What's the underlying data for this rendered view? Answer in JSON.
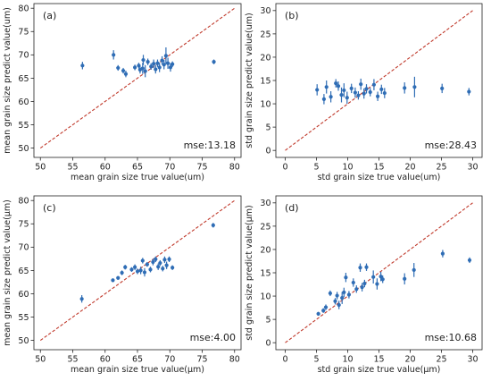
{
  "chart_data": [
    {
      "type": "scatter",
      "panel": "(a)",
      "annotation": "mse:13.18",
      "xlabel": "mean grain size true value(um)",
      "ylabel": "mean grain size predict value(um)",
      "xlim": [
        49,
        81
      ],
      "ylim": [
        48,
        81
      ],
      "xticks": [
        50,
        55,
        60,
        65,
        70,
        75,
        80
      ],
      "yticks": [
        50,
        55,
        60,
        65,
        70,
        75,
        80
      ],
      "diagonal": [
        [
          50,
          50
        ],
        [
          80,
          80
        ]
      ],
      "points": [
        [
          56.5,
          67.7,
          0.8
        ],
        [
          61.3,
          70.0,
          1.0
        ],
        [
          62.0,
          67.2,
          0.6
        ],
        [
          62.8,
          66.6,
          0.6
        ],
        [
          63.2,
          65.9,
          0.7
        ],
        [
          64.6,
          67.3,
          0.6
        ],
        [
          65.2,
          67.7,
          0.6
        ],
        [
          65.4,
          66.8,
          0.8
        ],
        [
          65.8,
          67.1,
          1.2
        ],
        [
          65.9,
          68.9,
          1.1
        ],
        [
          66.2,
          66.5,
          1.3
        ],
        [
          66.6,
          68.5,
          0.7
        ],
        [
          67.1,
          67.5,
          0.7
        ],
        [
          67.5,
          68.1,
          0.9
        ],
        [
          67.8,
          66.9,
          0.9
        ],
        [
          68.1,
          68.2,
          0.8
        ],
        [
          68.4,
          67.3,
          1.0
        ],
        [
          68.8,
          68.8,
          0.9
        ],
        [
          69.1,
          67.9,
          1.0
        ],
        [
          69.4,
          69.8,
          1.8
        ],
        [
          69.7,
          68.2,
          1.2
        ],
        [
          70.1,
          67.3,
          0.9
        ],
        [
          70.4,
          68.0,
          0.6
        ],
        [
          76.8,
          68.5,
          0.5
        ]
      ]
    },
    {
      "type": "scatter",
      "panel": "(b)",
      "annotation": "mse:28.43",
      "xlabel": "std grain size true value(um)",
      "ylabel": "std grain size predict value(um)",
      "xlim": [
        -1.5,
        31.5
      ],
      "ylim": [
        -1.5,
        31.5
      ],
      "xticks": [
        0,
        5,
        10,
        15,
        20,
        25,
        30
      ],
      "yticks": [
        0,
        5,
        10,
        15,
        20,
        25,
        30
      ],
      "diagonal": [
        [
          0,
          0
        ],
        [
          30,
          30
        ]
      ],
      "points": [
        [
          5.1,
          13.0,
          1.2
        ],
        [
          6.2,
          11.0,
          1.1
        ],
        [
          6.6,
          13.6,
          1.4
        ],
        [
          7.3,
          11.5,
          1.2
        ],
        [
          8.1,
          14.4,
          0.9
        ],
        [
          8.5,
          13.8,
          1.0
        ],
        [
          9.0,
          11.9,
          1.6
        ],
        [
          9.4,
          12.9,
          1.5
        ],
        [
          9.9,
          11.3,
          1.3
        ],
        [
          10.6,
          13.3,
          1.0
        ],
        [
          11.2,
          12.4,
          1.1
        ],
        [
          11.7,
          11.8,
          0.9
        ],
        [
          12.1,
          14.2,
          1.2
        ],
        [
          12.6,
          12.2,
          1.1
        ],
        [
          13.0,
          13.2,
          1.0
        ],
        [
          13.6,
          12.5,
          0.9
        ],
        [
          14.2,
          14.1,
          1.2
        ],
        [
          14.8,
          11.6,
          1.0
        ],
        [
          15.4,
          13.1,
          1.0
        ],
        [
          15.9,
          12.3,
          1.1
        ],
        [
          19.1,
          13.4,
          1.2
        ],
        [
          20.7,
          13.6,
          2.2
        ],
        [
          25.1,
          13.3,
          1.0
        ],
        [
          29.4,
          12.6,
          0.8
        ]
      ]
    },
    {
      "type": "scatter",
      "panel": "(c)",
      "annotation": "mse:4.00",
      "xlabel": "mean grain size true value(µm)",
      "ylabel": "mean grain size predict value(µm)",
      "xlim": [
        49,
        81
      ],
      "ylim": [
        48,
        81
      ],
      "xticks": [
        50,
        55,
        60,
        65,
        70,
        75,
        80
      ],
      "yticks": [
        50,
        55,
        60,
        65,
        70,
        75,
        80
      ],
      "diagonal": [
        [
          50,
          50
        ],
        [
          80,
          80
        ]
      ],
      "points": [
        [
          56.4,
          58.9,
          0.8
        ],
        [
          61.2,
          62.9,
          0.4
        ],
        [
          62.0,
          63.4,
          0.4
        ],
        [
          62.6,
          64.5,
          0.5
        ],
        [
          63.1,
          65.7,
          0.5
        ],
        [
          64.1,
          65.2,
          0.5
        ],
        [
          64.6,
          65.7,
          0.6
        ],
        [
          65.0,
          64.8,
          0.6
        ],
        [
          65.5,
          65.0,
          0.8
        ],
        [
          65.8,
          67.1,
          0.6
        ],
        [
          66.1,
          64.6,
          0.9
        ],
        [
          66.5,
          66.3,
          0.5
        ],
        [
          67.0,
          65.2,
          0.6
        ],
        [
          67.4,
          66.8,
          0.7
        ],
        [
          67.8,
          67.4,
          0.6
        ],
        [
          68.2,
          65.8,
          0.7
        ],
        [
          68.5,
          66.6,
          0.6
        ],
        [
          68.9,
          65.4,
          0.6
        ],
        [
          69.2,
          67.3,
          0.7
        ],
        [
          69.5,
          66.1,
          0.8
        ],
        [
          69.9,
          67.4,
          0.6
        ],
        [
          70.4,
          65.6,
          0.5
        ],
        [
          76.7,
          74.7,
          0.5
        ]
      ]
    },
    {
      "type": "scatter",
      "panel": "(d)",
      "annotation": "mse:10.68",
      "xlabel": "std grain size true value(µm)",
      "ylabel": "std grain size predict value(µm)",
      "xlim": [
        -1.5,
        31.5
      ],
      "ylim": [
        -1.5,
        31.5
      ],
      "xticks": [
        0,
        5,
        10,
        15,
        20,
        25,
        30
      ],
      "yticks": [
        0,
        5,
        10,
        15,
        20,
        25,
        30
      ],
      "diagonal": [
        [
          0,
          0
        ],
        [
          30,
          30
        ]
      ],
      "points": [
        [
          5.3,
          6.2,
          0.4
        ],
        [
          6.1,
          6.9,
          0.5
        ],
        [
          6.5,
          7.6,
          0.6
        ],
        [
          7.2,
          10.6,
          0.6
        ],
        [
          8.0,
          8.9,
          0.7
        ],
        [
          8.3,
          10.1,
          0.8
        ],
        [
          8.6,
          8.1,
          0.9
        ],
        [
          9.1,
          9.6,
          1.3
        ],
        [
          9.4,
          10.8,
          1.0
        ],
        [
          9.7,
          14.0,
          1.0
        ],
        [
          10.2,
          10.3,
          0.8
        ],
        [
          10.9,
          12.9,
          0.9
        ],
        [
          11.4,
          11.5,
          0.8
        ],
        [
          12.0,
          16.1,
          0.9
        ],
        [
          12.3,
          11.9,
          0.9
        ],
        [
          12.7,
          12.7,
          0.8
        ],
        [
          13.0,
          16.2,
          0.8
        ],
        [
          14.1,
          14.1,
          1.4
        ],
        [
          14.7,
          12.6,
          1.2
        ],
        [
          15.3,
          14.2,
          1.0
        ],
        [
          15.6,
          13.6,
          0.8
        ],
        [
          19.1,
          13.7,
          1.2
        ],
        [
          20.6,
          15.6,
          1.5
        ],
        [
          25.2,
          19.1,
          0.8
        ],
        [
          29.5,
          17.7,
          0.6
        ]
      ]
    }
  ]
}
